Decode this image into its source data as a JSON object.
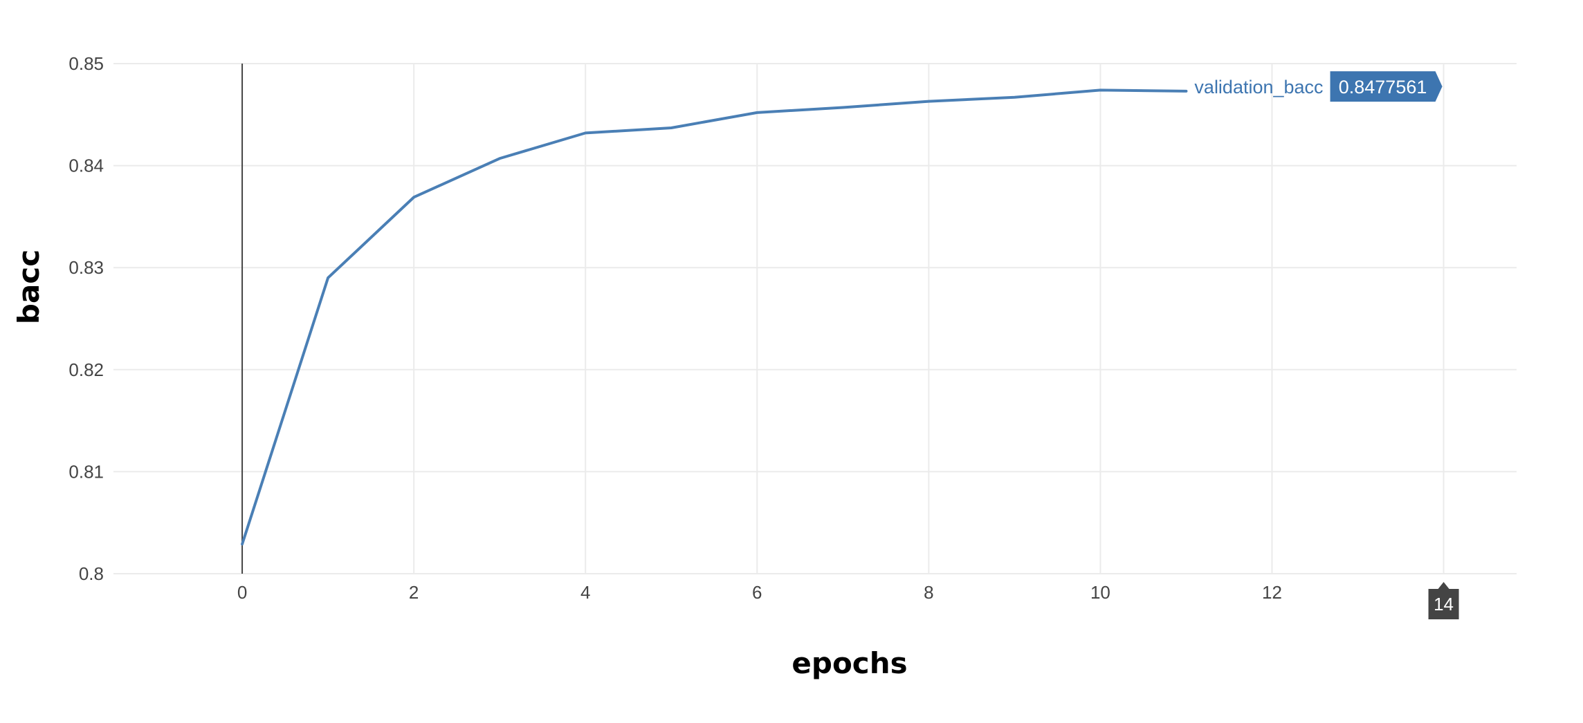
{
  "chart_data": {
    "type": "line",
    "xlabel": "epochs",
    "ylabel": "bacc",
    "xlim": [
      -1.5,
      14.85
    ],
    "ylim": [
      0.8,
      0.85
    ],
    "grid": true,
    "x_ticks": [
      0,
      2,
      4,
      6,
      8,
      10,
      12
    ],
    "x_tick_labels": [
      "0",
      "2",
      "4",
      "6",
      "8",
      "10",
      "12"
    ],
    "y_ticks": [
      0.8,
      0.81,
      0.82,
      0.83,
      0.84,
      0.85
    ],
    "y_tick_labels": [
      "0.8",
      "0.81",
      "0.82",
      "0.83",
      "0.84",
      "0.85"
    ],
    "series": [
      {
        "name": "validation_bacc",
        "color": "#4a7fb5",
        "x": [
          0,
          1,
          2,
          3,
          4,
          5,
          6,
          7,
          8,
          9,
          10,
          11
        ],
        "values": [
          0.8029,
          0.829,
          0.8369,
          0.8407,
          0.8432,
          0.8437,
          0.8452,
          0.8457,
          0.8463,
          0.8467,
          0.8474,
          0.8473
        ]
      }
    ],
    "hover": {
      "series_name": "validation_bacc",
      "value": "0.8477561",
      "y": 0.8477561,
      "color": "#3d75b0",
      "x_spike_value": 14,
      "x_spike_label": "14"
    }
  }
}
